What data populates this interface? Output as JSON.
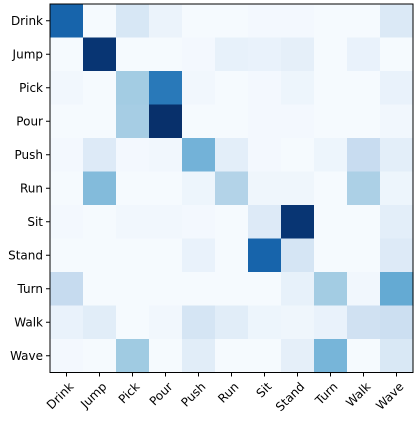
{
  "chart_data": {
    "type": "heatmap",
    "title": "",
    "xlabel": "",
    "ylabel": "",
    "x_categories": [
      "Drink",
      "Jump",
      "Pick",
      "Pour",
      "Push",
      "Run",
      "Sit",
      "Stand",
      "Turn",
      "Walk",
      "Wave"
    ],
    "y_categories": [
      "Drink",
      "Jump",
      "Pick",
      "Pour",
      "Push",
      "Run",
      "Sit",
      "Stand",
      "Turn",
      "Walk",
      "Wave"
    ],
    "values": [
      [
        0.8,
        0.01,
        0.16,
        0.06,
        0.01,
        0.01,
        0.02,
        0.02,
        0.01,
        0.01,
        0.14
      ],
      [
        0.01,
        0.98,
        0.01,
        0.01,
        0.02,
        0.08,
        0.07,
        0.09,
        0.01,
        0.07,
        0.01
      ],
      [
        0.03,
        0.01,
        0.36,
        0.72,
        0.03,
        0.01,
        0.02,
        0.05,
        0.01,
        0.01,
        0.07
      ],
      [
        0.01,
        0.01,
        0.35,
        1.0,
        0.01,
        0.01,
        0.02,
        0.02,
        0.01,
        0.01,
        0.03
      ],
      [
        0.02,
        0.13,
        0.02,
        0.03,
        0.48,
        0.1,
        0.02,
        0.01,
        0.05,
        0.24,
        0.1
      ],
      [
        0.01,
        0.44,
        0.01,
        0.01,
        0.05,
        0.31,
        0.04,
        0.04,
        0.01,
        0.33,
        0.05
      ],
      [
        0.02,
        0.01,
        0.03,
        0.03,
        0.02,
        0.01,
        0.13,
        0.98,
        0.01,
        0.01,
        0.1
      ],
      [
        0.01,
        0.01,
        0.01,
        0.01,
        0.07,
        0.01,
        0.8,
        0.17,
        0.01,
        0.01,
        0.13
      ],
      [
        0.25,
        0.01,
        0.01,
        0.01,
        0.01,
        0.01,
        0.01,
        0.08,
        0.36,
        0.03,
        0.52
      ],
      [
        0.07,
        0.11,
        0.01,
        0.03,
        0.17,
        0.11,
        0.05,
        0.04,
        0.07,
        0.2,
        0.22
      ],
      [
        0.02,
        0.01,
        0.37,
        0.01,
        0.11,
        0.01,
        0.01,
        0.09,
        0.47,
        0.01,
        0.15
      ]
    ],
    "colormap": "Blues",
    "vrange": [
      0,
      1
    ],
    "grid": false,
    "legend": "none",
    "colors": {
      "low": "#f7fbff",
      "high": "#08306b",
      "frame": "#000000",
      "tick_label": "#000000",
      "tick_label_last_x": "#555555"
    }
  }
}
